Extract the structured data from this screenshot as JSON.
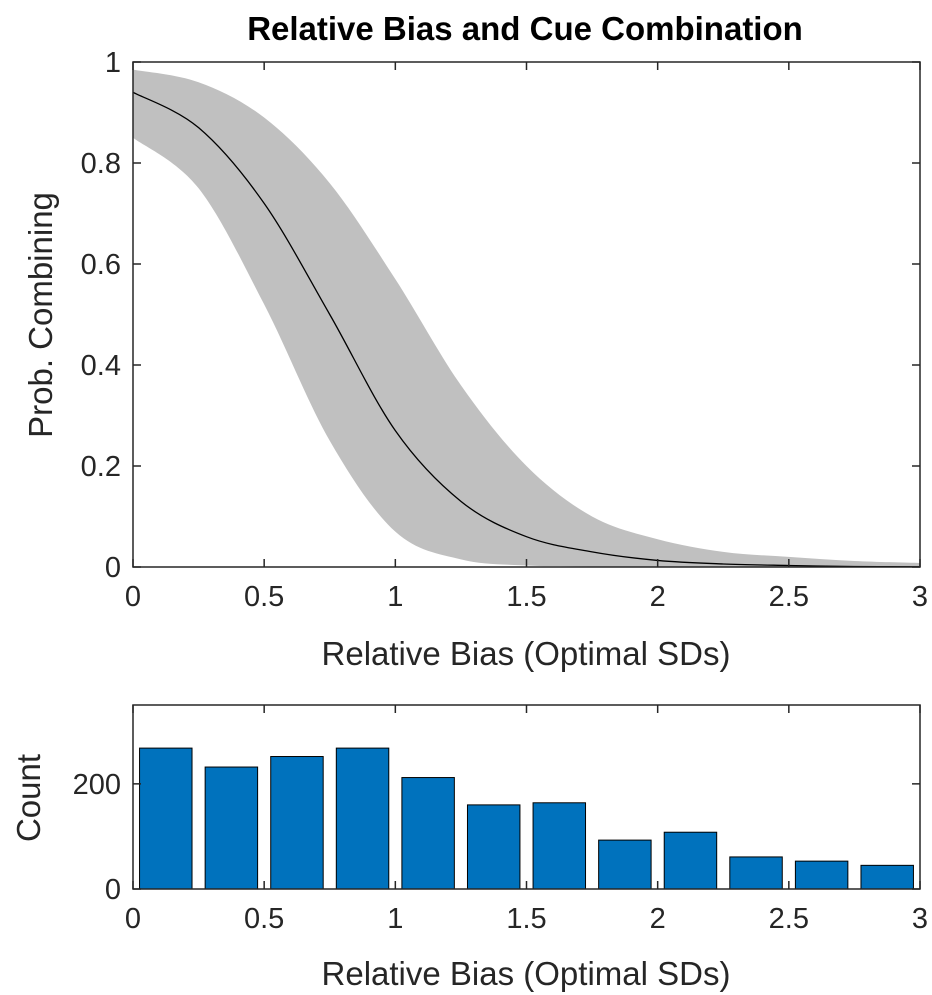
{
  "chart_data": [
    {
      "type": "area",
      "title": "Relative Bias and Cue Combination",
      "xlabel": "Relative Bias (Optimal SDs)",
      "ylabel": "Prob. Combining",
      "xlim": [
        0,
        3
      ],
      "ylim": [
        0,
        1
      ],
      "xticks": [
        "0",
        "0.5",
        "1",
        "1.5",
        "2",
        "2.5",
        "3"
      ],
      "yticks": [
        "0",
        "0.2",
        "0.4",
        "0.6",
        "0.8",
        "1"
      ],
      "grid": false,
      "x": [
        0,
        0.25,
        0.5,
        0.75,
        1.0,
        1.25,
        1.5,
        1.75,
        2.0,
        2.25,
        2.5,
        2.75,
        3.0
      ],
      "series": [
        {
          "role": "mean",
          "color": "#000000",
          "values": [
            0.94,
            0.87,
            0.72,
            0.5,
            0.27,
            0.13,
            0.06,
            0.03,
            0.013,
            0.006,
            0.003,
            0.001,
            0.0005
          ]
        },
        {
          "role": "upper",
          "color": "#c0c0c0",
          "values": [
            0.985,
            0.96,
            0.89,
            0.76,
            0.57,
            0.36,
            0.2,
            0.1,
            0.055,
            0.03,
            0.02,
            0.012,
            0.008
          ]
        },
        {
          "role": "lower",
          "color": "#c0c0c0",
          "values": [
            0.85,
            0.75,
            0.52,
            0.25,
            0.07,
            0.015,
            0.003,
            0.001,
            0.0005,
            0.0002,
            0.0001,
            0,
            0
          ]
        }
      ]
    },
    {
      "type": "bar",
      "title": "",
      "xlabel": "Relative Bias (Optimal SDs)",
      "ylabel": "Count",
      "xlim": [
        0,
        3
      ],
      "ylim": [
        0,
        350
      ],
      "xticks": [
        "0",
        "0.5",
        "1",
        "1.5",
        "2",
        "2.5",
        "3"
      ],
      "yticks": [
        "0",
        "200"
      ],
      "grid": false,
      "bar_color": "#0072bd",
      "categories": [
        0.125,
        0.375,
        0.625,
        0.875,
        1.125,
        1.375,
        1.625,
        1.875,
        2.125,
        2.375,
        2.625,
        2.875
      ],
      "values": [
        268,
        232,
        252,
        268,
        212,
        160,
        164,
        93,
        108,
        61,
        53,
        45
      ]
    }
  ]
}
